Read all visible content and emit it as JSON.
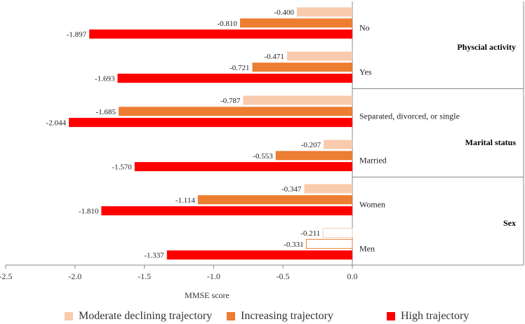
{
  "chart_data": {
    "type": "bar",
    "orientation": "horizontal",
    "title": "",
    "xlabel": "MMSE score",
    "ylabel": "",
    "xlim": [
      -2.5,
      0.0
    ],
    "xticks": [
      "-2.5",
      "-2.0",
      "-1.5",
      "-1.0",
      "-0.5",
      "0.0"
    ],
    "groups": [
      {
        "name": "Physcial activity",
        "categories": [
          {
            "label": "No",
            "values": {
              "moderate": -0.4,
              "increasing": -0.81,
              "high": -1.897
            },
            "value_labels": {
              "moderate": "-0.400",
              "increasing": "-0.810",
              "high": "-1.897"
            }
          },
          {
            "label": "Yes",
            "values": {
              "moderate": -0.471,
              "increasing": -0.721,
              "high": -1.693
            },
            "value_labels": {
              "moderate": "-0.471",
              "increasing": "-0.721",
              "high": "-1.693"
            }
          }
        ]
      },
      {
        "name": "Marital status",
        "categories": [
          {
            "label": "Separated, divorced, or single",
            "values": {
              "moderate": -0.787,
              "increasing": -1.685,
              "high": -2.044
            },
            "value_labels": {
              "moderate": "-0.787",
              "increasing": "-1.685",
              "high": "-2.044"
            }
          },
          {
            "label": "Married",
            "values": {
              "moderate": -0.207,
              "increasing": -0.553,
              "high": -1.57
            },
            "value_labels": {
              "moderate": "-0.207",
              "increasing": "-0.553",
              "high": "-1.570"
            }
          }
        ]
      },
      {
        "name": "Sex",
        "categories": [
          {
            "label": "Women",
            "values": {
              "moderate": -0.347,
              "increasing": -1.114,
              "high": -1.81
            },
            "value_labels": {
              "moderate": "-0.347",
              "increasing": "-1.114",
              "high": "-1.810"
            }
          },
          {
            "label": "Men",
            "values": {
              "moderate": -0.211,
              "increasing": -0.331,
              "high": -1.337
            },
            "value_labels": {
              "moderate": "-0.211",
              "increasing": "-0.331",
              "high": "-1.337"
            },
            "outlined": [
              "moderate",
              "increasing"
            ]
          }
        ]
      }
    ],
    "series": [
      {
        "key": "moderate",
        "name": "Moderate declining trajectory",
        "color": "#F8CBAD"
      },
      {
        "key": "increasing",
        "name": "Increasing trajectory",
        "color": "#ED7D31"
      },
      {
        "key": "high",
        "name": "High trajectory",
        "color": "#FF0000"
      }
    ],
    "legend_position": "bottom",
    "grid": false
  }
}
